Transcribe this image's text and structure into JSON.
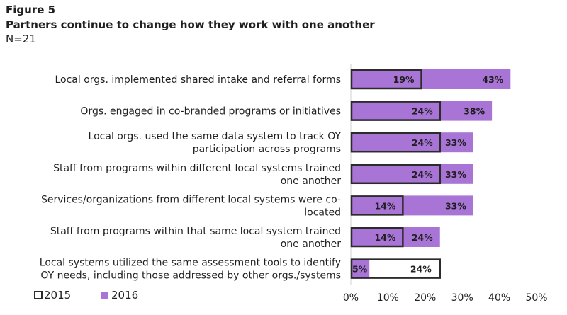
{
  "figure": {
    "label": "Figure 5",
    "title": "Partners continue to change how they work with one another",
    "n": "N=21"
  },
  "colors": {
    "series_2016": "#a874d6",
    "series_2015_outline": "#2b2b2b",
    "text": "#1f1f1f"
  },
  "chart_data": {
    "type": "bar",
    "orientation": "horizontal",
    "overlap": true,
    "categories": [
      [
        "Local orgs. implemented shared intake and referral forms"
      ],
      [
        "Orgs. engaged in co-branded programs or initiatives"
      ],
      [
        "Local orgs. used the same data system to track OY",
        "participation across programs"
      ],
      [
        "Staff from programs within different local systems trained",
        "one another"
      ],
      [
        "Services/organizations from different local systems were co-",
        "located"
      ],
      [
        "Staff from programs within that same local system trained",
        "one another"
      ],
      [
        "Local systems utilized the same assessment tools to identify",
        "OY needs, including those addressed by other orgs./systems"
      ]
    ],
    "series": [
      {
        "name": "2015",
        "values": [
          19,
          24,
          24,
          24,
          14,
          14,
          24
        ],
        "labels": [
          "19%",
          "24%",
          "24%",
          "24%",
          "14%",
          "14%",
          "24%"
        ]
      },
      {
        "name": "2016",
        "values": [
          43,
          38,
          33,
          33,
          33,
          24,
          5
        ],
        "labels": [
          "43%",
          "38%",
          "33%",
          "33%",
          "33%",
          "24%",
          "5%"
        ]
      }
    ],
    "xlim": [
      0,
      50
    ],
    "xticks": [
      "0%",
      "10%",
      "20%",
      "30%",
      "40%",
      "50%"
    ],
    "grid": false,
    "legend": "bottom-left"
  }
}
